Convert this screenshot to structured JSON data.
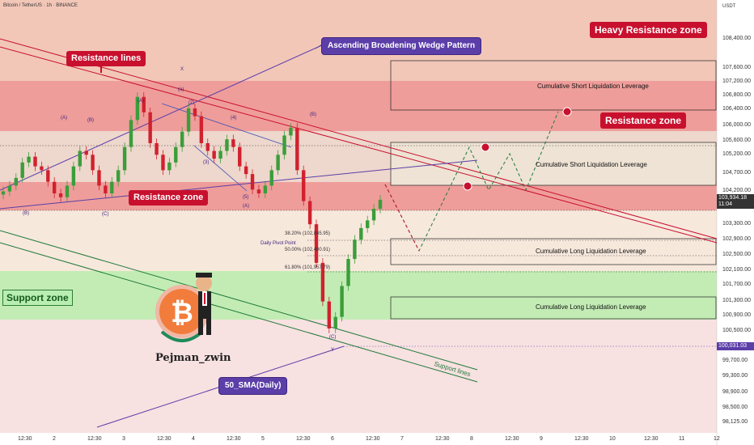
{
  "header": {
    "symbol_title": "Bitcoin / TetherUS · 1h · BINANCE",
    "currency": "USDT"
  },
  "price_axis": {
    "ticks": [
      "108,400.00",
      "107,600.00",
      "107,200.00",
      "106,800.00",
      "106,400.00",
      "106,000.00",
      "105,600.00",
      "105,200.00",
      "104,700.00",
      "104,200.00",
      "103,300.00",
      "102,900.00",
      "102,500.00",
      "102,100.00",
      "101,700.00",
      "101,300.00",
      "100,900.00",
      "100,500.00",
      "99,700.00",
      "99,300.00",
      "98,900.00",
      "98,500.00",
      "98,125.00"
    ],
    "last_price": "103,934.18",
    "last_price_countdown": "11:04",
    "sma_price": "100,031.03"
  },
  "time_axis": {
    "ticks": [
      "12:30",
      "2",
      "12:30",
      "3",
      "12:30",
      "4",
      "12:30",
      "5",
      "12:30",
      "6",
      "12:30",
      "7",
      "12:30",
      "8",
      "12:30",
      "9",
      "12:30",
      "10",
      "12:30",
      "11",
      "12"
    ]
  },
  "annotations": {
    "heavy_resistance": "Heavy Resistance zone",
    "resistance_lines": "Resistance lines",
    "wedge": "Ascending Broadening Wedge Pattern",
    "resistance_zone_right": "Resistance zone",
    "resistance_zone_left": "Resistance zone",
    "support_zone": "Support zone",
    "sma": "50_SMA(Daily)",
    "support_lines": "Support lines",
    "author": "Pejman_zwin",
    "daily_pivot": "Daily Pivot Point"
  },
  "liquidation_boxes": [
    {
      "label": "Cumulative Short Liquidation Leverage"
    },
    {
      "label": "Cumulative Short Liquidation Leverage"
    },
    {
      "label": "Cumulative Long Liquidation Leverage"
    },
    {
      "label": "Cumulative Long Liquidation Leverage"
    }
  ],
  "fib_levels": [
    {
      "label": "38.20% (102,845.95)"
    },
    {
      "label": "50.00% (102,400.91)"
    },
    {
      "label": "61.80% (101,957.79)"
    }
  ],
  "wave_labels": [
    "(A)",
    "(B)",
    "(C)",
    "A",
    "B",
    "X",
    "Y",
    "(1)",
    "(2)",
    "(3)",
    "(4)",
    "(5)"
  ],
  "colors": {
    "heavy_resistance_bg": "#f2c7b8",
    "resistance_zone": "#ef9d9a",
    "support_zone": "#c3ecb5",
    "up_candle": "#3a9e3a",
    "down_candle": "#d1212e",
    "resistance_line": "#c8102e",
    "wedge_line": "#5b3ea8",
    "support_line": "#1f7a3a"
  },
  "chart_data": {
    "type": "candlestick",
    "title": "Bitcoin / TetherUS · 1h · BINANCE",
    "ylabel": "USDT",
    "ylim": [
      98000,
      108900
    ],
    "x_ticks": [
      "12:30",
      "2",
      "12:30",
      "3",
      "12:30",
      "4",
      "12:30",
      "5",
      "12:30",
      "6",
      "12:30",
      "7",
      "12:30",
      "8",
      "12:30",
      "9",
      "12:30",
      "10",
      "12:30",
      "11",
      "12"
    ],
    "series_close": [
      104150,
      104300,
      104500,
      104900,
      105050,
      104800,
      104700,
      104400,
      104100,
      104000,
      104300,
      104800,
      105200,
      105100,
      104700,
      104300,
      104100,
      104400,
      104700,
      105300,
      106000,
      106600,
      106200,
      105400,
      105100,
      104700,
      104900,
      105300,
      105700,
      106300,
      106100,
      105400,
      105200,
      105000,
      105200,
      105500,
      105300,
      104800,
      104600,
      104200,
      104100,
      104300,
      104700,
      105100,
      105600,
      105800,
      104700,
      103900,
      103300,
      102300,
      101300,
      100600,
      100900,
      101700,
      102400,
      102900,
      103200,
      103400,
      103700,
      103934.18
    ],
    "fib_levels": [
      102845.95,
      102400.91,
      101957.79
    ],
    "last_price": 103934.18,
    "sma_50_daily": 100031.03,
    "zones": {
      "heavy_resistance": [
        106600,
        108900
      ],
      "resistance": [
        104200,
        106300
      ],
      "support": [
        100700,
        101800
      ]
    }
  }
}
